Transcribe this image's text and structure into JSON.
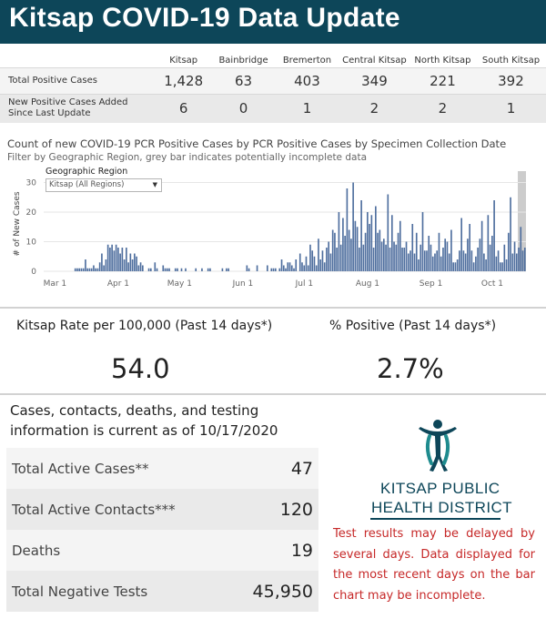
{
  "header": {
    "title": "Kitsap COVID-19 Data Update"
  },
  "summary": {
    "columns": [
      "Kitsap",
      "Bainbridge",
      "Bremerton",
      "Central Kitsap",
      "North Kitsap",
      "South Kitsap"
    ],
    "rows": [
      {
        "label": "Total Positive Cases",
        "values": [
          "1,428",
          "63",
          "403",
          "349",
          "221",
          "392"
        ]
      },
      {
        "label": "New Positive Cases Added Since Last Update",
        "values": [
          "6",
          "0",
          "1",
          "2",
          "2",
          "1"
        ]
      }
    ]
  },
  "chart_section": {
    "title": "Count of new COVID-19 PCR Positive Cases by PCR Positive Cases by Specimen Collection Date",
    "subtitle": "Filter by Geographic Region, grey bar indicates potentially incomplete data",
    "filter": {
      "label": "Geographic Region",
      "selected": "Kitsap (All Regions)"
    }
  },
  "chart_data": {
    "type": "bar",
    "title": "Count of new COVID-19 PCR Positive Cases by PCR Positive Cases by Specimen Collection Date",
    "ylabel": "# of New Cases",
    "xlabel": "",
    "ylim": [
      0,
      32
    ],
    "y_ticks": [
      0,
      10,
      20,
      30
    ],
    "x_ticks": [
      "Mar 1",
      "Apr 1",
      "May 1",
      "Jun 1",
      "Jul 1",
      "Aug 1",
      "Sep 1",
      "Oct 1"
    ],
    "x_start": "Feb 25",
    "grid": true,
    "bar_color": "#4e6e9e",
    "incomplete_shade_color": "#cccccc",
    "incomplete_last_days": 4,
    "values": [
      0,
      0,
      0,
      0,
      0,
      0,
      0,
      0,
      0,
      0,
      0,
      0,
      0,
      0,
      0,
      1,
      1,
      1,
      1,
      1,
      4,
      1,
      1,
      1,
      2,
      1,
      1,
      3,
      6,
      2,
      4,
      9,
      8,
      9,
      7,
      9,
      8,
      6,
      8,
      4,
      8,
      3,
      6,
      4,
      6,
      5,
      2,
      3,
      2,
      0,
      0,
      1,
      1,
      0,
      3,
      1,
      0,
      0,
      2,
      1,
      1,
      1,
      0,
      0,
      1,
      1,
      0,
      1,
      0,
      1,
      0,
      0,
      0,
      0,
      1,
      0,
      0,
      1,
      0,
      0,
      1,
      1,
      0,
      0,
      0,
      0,
      0,
      1,
      0,
      1,
      1,
      0,
      0,
      0,
      0,
      0,
      0,
      0,
      0,
      2,
      1,
      0,
      0,
      0,
      2,
      0,
      0,
      0,
      0,
      2,
      0,
      1,
      1,
      1,
      0,
      1,
      4,
      2,
      1,
      3,
      3,
      2,
      1,
      4,
      0,
      6,
      3,
      2,
      5,
      2,
      9,
      7,
      5,
      2,
      11,
      4,
      7,
      3,
      8,
      10,
      6,
      14,
      13,
      8,
      20,
      9,
      18,
      12,
      28,
      14,
      11,
      30,
      17,
      15,
      8,
      24,
      9,
      13,
      20,
      16,
      19,
      8,
      22,
      13,
      14,
      10,
      11,
      9,
      26,
      8,
      19,
      10,
      9,
      13,
      17,
      8,
      8,
      10,
      6,
      7,
      16,
      6,
      13,
      4,
      9,
      20,
      7,
      7,
      12,
      9,
      5,
      6,
      7,
      13,
      5,
      8,
      11,
      10,
      6,
      14,
      3,
      3,
      4,
      7,
      18,
      7,
      6,
      11,
      16,
      7,
      3,
      5,
      8,
      11,
      17,
      6,
      4,
      19,
      9,
      12,
      24,
      5,
      7,
      3,
      3,
      9,
      4,
      13,
      25,
      6,
      10,
      6,
      8,
      15,
      7,
      8
    ]
  },
  "rates": {
    "rate_label": "Kitsap Rate per 100,000 (Past 14 days*)",
    "rate_value": "54.0",
    "positive_label": "% Positive (Past 14 days*)",
    "positive_value": "2.7%"
  },
  "info": {
    "text": "Cases, contacts, deaths, and testing information is current as of 10/17/2020"
  },
  "stats": [
    {
      "label": "Total Active Cases**",
      "value": "47"
    },
    {
      "label": "Total Active Contacts***",
      "value": "120"
    },
    {
      "label": "Deaths",
      "value": "19"
    },
    {
      "label": "Total Negative Tests",
      "value": "45,950"
    }
  ],
  "logo": {
    "line1": "KITSAP PUBLIC",
    "line2": "HEALTH DISTRICT",
    "color": "#0d4659"
  },
  "note": {
    "text": "Test results may be delayed by several days. Data displayed for the most recent days on the bar chart may be incomplete."
  }
}
